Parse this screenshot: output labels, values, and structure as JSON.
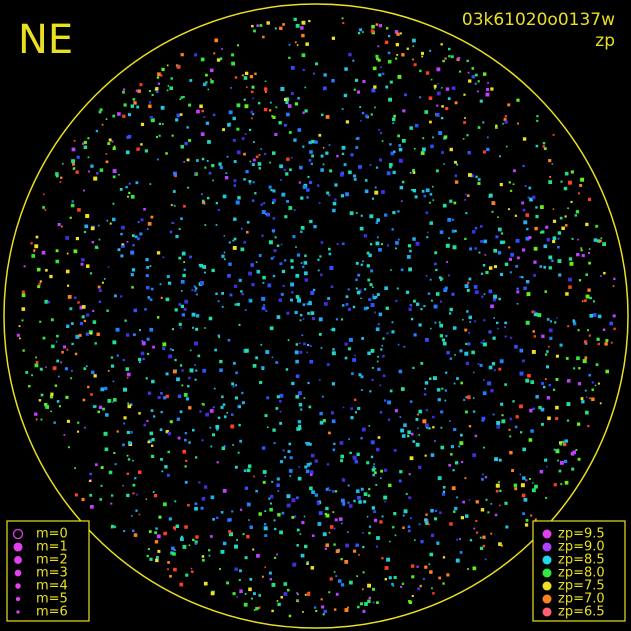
{
  "header": {
    "direction": "NE",
    "frame_id": "03k61020o0137w",
    "quantity": "zp"
  },
  "legend_magnitude": [
    "m=0",
    "m=1",
    "m=2",
    "m=3",
    "m=4",
    "m=5",
    "m=6"
  ],
  "legend_zp": [
    {
      "label": "zp=9.5",
      "color": "#e040f0"
    },
    {
      "label": "zp=9.0",
      "color": "#b040ff"
    },
    {
      "label": "zp=8.5",
      "color": "#20d8e8"
    },
    {
      "label": "zp=8.0",
      "color": "#30e840"
    },
    {
      "label": "zp=7.5",
      "color": "#f0e020"
    },
    {
      "label": "zp=7.0",
      "color": "#ff8020"
    },
    {
      "label": "zp=6.5",
      "color": "#ff6070"
    }
  ]
}
